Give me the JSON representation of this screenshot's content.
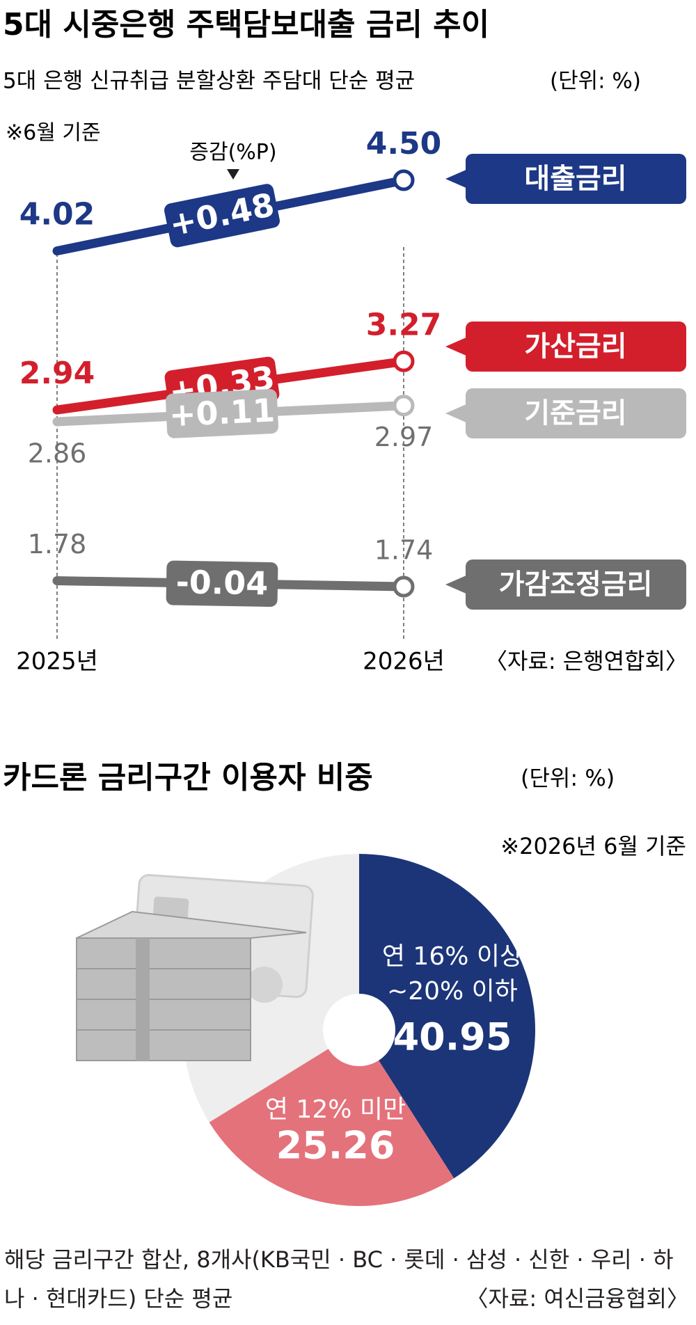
{
  "chart_data": [
    {
      "type": "line",
      "title": "5대 시중은행 주택담보대출 금리 추이",
      "subtitle": "5대 은행 신규취급 분할상환 주담대 단순 평균",
      "unit": "(단위: %)",
      "note": "※6월 기준",
      "change_title": "증감(%P)",
      "source": "〈자료: 은행연합회〉",
      "categories": [
        "2025년",
        "2026년"
      ],
      "series": [
        {
          "name": "대출금리",
          "color": "#1c3886",
          "values": [
            4.02,
            4.5
          ],
          "value_labels": [
            "4.02",
            "4.50"
          ],
          "change": {
            "value": 0.48,
            "label": "+0.48"
          },
          "label_position": "above"
        },
        {
          "name": "가산금리",
          "color": "#d31f2c",
          "values": [
            2.94,
            3.27
          ],
          "value_labels": [
            "2.94",
            "3.27"
          ],
          "change": {
            "value": 0.33,
            "label": "+0.33"
          },
          "label_position": "above"
        },
        {
          "name": "기준금리",
          "color": "#b9b9b9",
          "values": [
            2.86,
            2.97
          ],
          "value_labels": [
            "2.86",
            "2.97"
          ],
          "change": {
            "value": 0.11,
            "label": "+0.11"
          },
          "label_position": "below"
        },
        {
          "name": "가감조정금리",
          "color": "#6f6f6f",
          "values": [
            1.78,
            1.74
          ],
          "value_labels": [
            "1.78",
            "1.74"
          ],
          "change": {
            "value": -0.04,
            "label": "-0.04"
          },
          "label_position": "above"
        }
      ]
    },
    {
      "type": "donut",
      "title": "카드론 금리구간 이용자 비중",
      "unit": "(단위: %)",
      "note": "※2026년 6월 기준",
      "categories": [
        "연 16% 이상\n~20% 이하",
        "연 12% 미만",
        null
      ],
      "values": [
        40.95,
        25.26,
        33.79
      ],
      "colors": [
        "#1c3579",
        "#e4727b",
        "#eeeeee"
      ],
      "footnote": "해당 금리구간 합산, 8개사(KB국민 · BC · 롯데 · 삼성 · 신한 · 우리 · 하나 · 현대카드) 단순 평균",
      "source": "〈자료: 여신금융협회〉"
    }
  ]
}
